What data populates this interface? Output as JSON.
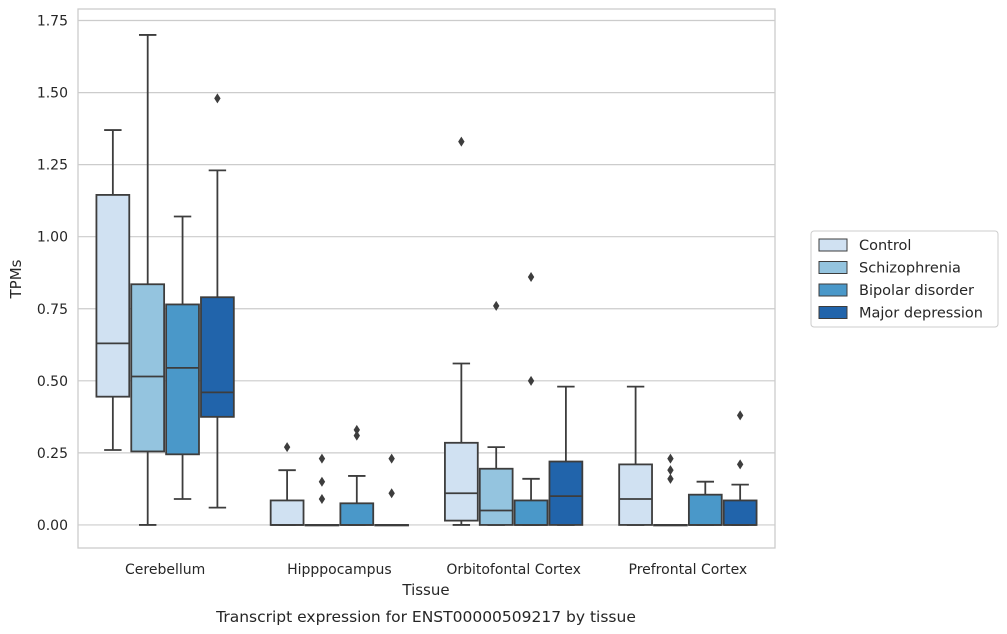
{
  "caption": "Transcript expression for ENST00000509217 by tissue",
  "chart_data": {
    "type": "boxplot",
    "xlabel": "Tissue",
    "ylabel": "TPMs",
    "ylim": [
      -0.08,
      1.79
    ],
    "yticks": [
      "0.00",
      "0.25",
      "0.50",
      "0.75",
      "1.00",
      "1.25",
      "1.50",
      "1.75"
    ],
    "grid": "horizontal",
    "legend_position": "right",
    "categories": [
      "Cerebellum",
      "Hipppocampus",
      "Orbitofontal Cortex",
      "Prefrontal Cortex"
    ],
    "series": [
      {
        "name": "Control",
        "color": "#d0e1f2",
        "boxes": [
          {
            "whislo": 0.26,
            "q1": 0.445,
            "med": 0.63,
            "q3": 1.145,
            "whishi": 1.37,
            "fliers": []
          },
          {
            "whislo": 0.0,
            "q1": 0.0,
            "med": 0.0,
            "q3": 0.085,
            "whishi": 0.19,
            "fliers": [
              0.27
            ]
          },
          {
            "whislo": 0.0,
            "q1": 0.015,
            "med": 0.11,
            "q3": 0.285,
            "whishi": 0.56,
            "fliers": [
              1.33
            ]
          },
          {
            "whislo": 0.0,
            "q1": 0.0,
            "med": 0.09,
            "q3": 0.21,
            "whishi": 0.48,
            "fliers": []
          }
        ]
      },
      {
        "name": "Schizophrenia",
        "color": "#94c4df",
        "boxes": [
          {
            "whislo": 0.0,
            "q1": 0.255,
            "med": 0.515,
            "q3": 0.835,
            "whishi": 1.7,
            "fliers": []
          },
          {
            "whislo": 0.0,
            "q1": 0.0,
            "med": 0.0,
            "q3": 0.0,
            "whishi": 0.0,
            "fliers": [
              0.09,
              0.15,
              0.23
            ]
          },
          {
            "whislo": 0.0,
            "q1": 0.0,
            "med": 0.05,
            "q3": 0.195,
            "whishi": 0.27,
            "fliers": [
              0.76
            ]
          },
          {
            "whislo": 0.0,
            "q1": 0.0,
            "med": 0.0,
            "q3": 0.0,
            "whishi": 0.0,
            "fliers": [
              0.16,
              0.19,
              0.23
            ]
          }
        ]
      },
      {
        "name": "Bipolar disorder",
        "color": "#4a98c9",
        "boxes": [
          {
            "whislo": 0.09,
            "q1": 0.245,
            "med": 0.545,
            "q3": 0.765,
            "whishi": 1.07,
            "fliers": []
          },
          {
            "whislo": 0.0,
            "q1": 0.0,
            "med": 0.0,
            "q3": 0.075,
            "whishi": 0.17,
            "fliers": [
              0.31,
              0.33
            ]
          },
          {
            "whislo": 0.0,
            "q1": 0.0,
            "med": 0.0,
            "q3": 0.085,
            "whishi": 0.16,
            "fliers": [
              0.5,
              0.86
            ]
          },
          {
            "whislo": 0.0,
            "q1": 0.0,
            "med": 0.0,
            "q3": 0.105,
            "whishi": 0.15,
            "fliers": []
          }
        ]
      },
      {
        "name": "Major depression",
        "color": "#2164ab",
        "boxes": [
          {
            "whislo": 0.06,
            "q1": 0.375,
            "med": 0.46,
            "q3": 0.79,
            "whishi": 1.23,
            "fliers": [
              1.48
            ]
          },
          {
            "whislo": 0.0,
            "q1": 0.0,
            "med": 0.0,
            "q3": 0.0,
            "whishi": 0.0,
            "fliers": [
              0.11,
              0.23
            ]
          },
          {
            "whislo": 0.0,
            "q1": 0.0,
            "med": 0.1,
            "q3": 0.22,
            "whishi": 0.48,
            "fliers": []
          },
          {
            "whislo": 0.0,
            "q1": 0.0,
            "med": 0.0,
            "q3": 0.085,
            "whishi": 0.14,
            "fliers": [
              0.21,
              0.38
            ]
          }
        ]
      }
    ]
  }
}
